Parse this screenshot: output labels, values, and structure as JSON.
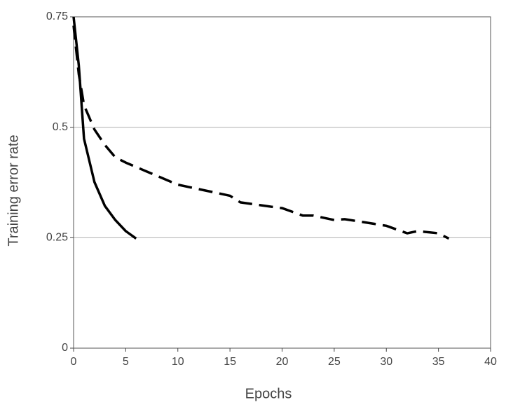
{
  "chart_data": {
    "type": "line",
    "x_label": "Epochs",
    "y_label": "Training error rate",
    "xlim": [
      0,
      40
    ],
    "xticks": [
      0,
      5,
      10,
      15,
      20,
      25,
      30,
      35,
      40
    ],
    "ylim": [
      0,
      0.75
    ],
    "yticks": [
      0,
      0.25,
      0.5,
      0.75
    ],
    "grid": true,
    "series": [
      {
        "color": "#000000",
        "dashed": false,
        "x": [
          0,
          0.5,
          1,
          2,
          3,
          4,
          5,
          6
        ],
        "values": [
          0.75,
          0.64,
          0.474,
          0.376,
          0.322,
          0.29,
          0.265,
          0.248
        ]
      },
      {
        "color": "#000000",
        "dashed": true,
        "x": [
          0,
          0.5,
          1,
          2,
          3,
          4,
          5,
          7,
          10,
          15,
          16,
          19,
          20,
          22,
          23,
          25,
          26,
          30,
          32,
          33,
          35,
          36
        ],
        "values": [
          0.73,
          0.62,
          0.55,
          0.495,
          0.46,
          0.432,
          0.42,
          0.4,
          0.37,
          0.345,
          0.33,
          0.32,
          0.317,
          0.3,
          0.3,
          0.29,
          0.292,
          0.277,
          0.26,
          0.265,
          0.26,
          0.248
        ]
      }
    ]
  }
}
